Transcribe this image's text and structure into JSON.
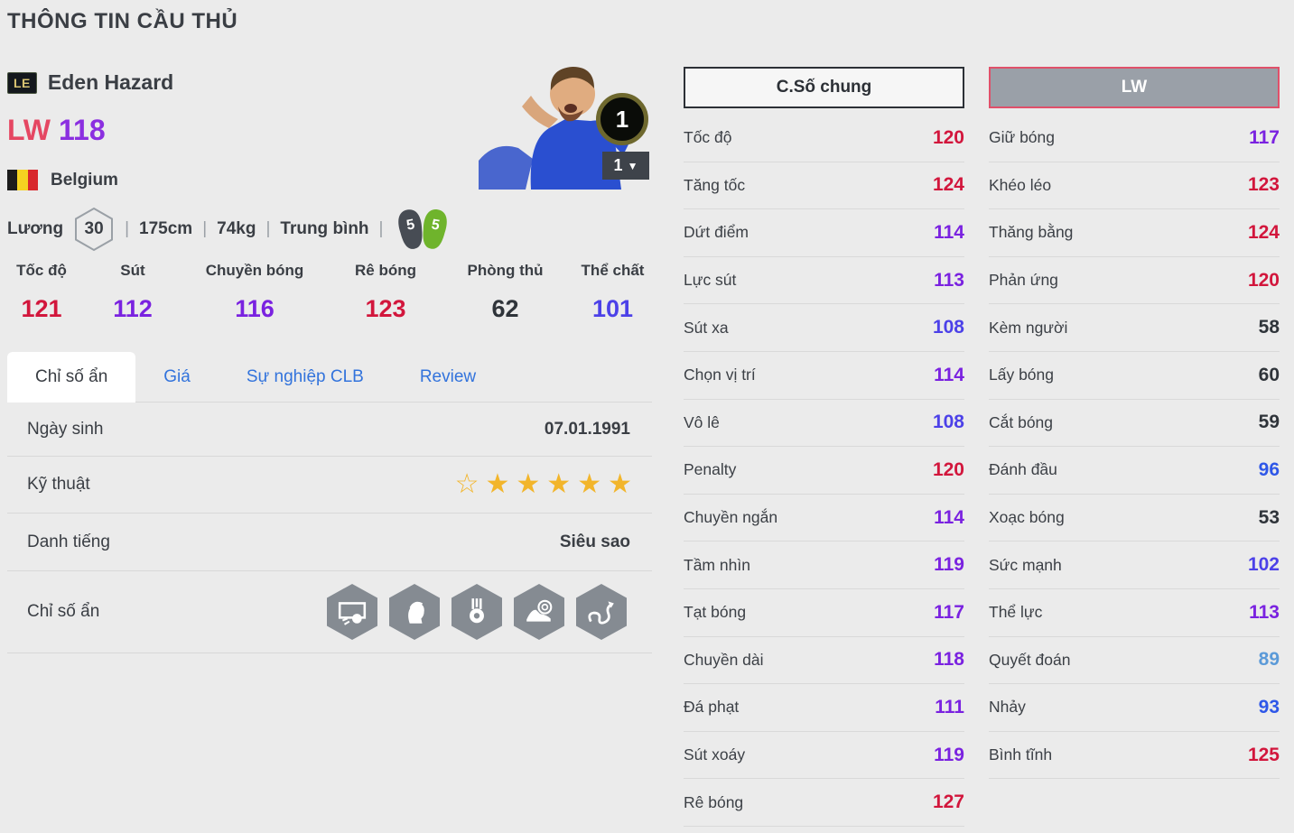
{
  "page": {
    "title": "THÔNG TIN CẦU THỦ"
  },
  "colors": {
    "red": "#d2163c",
    "purple": "#7a22e0",
    "indigo": "#4c41e8",
    "blue": "#2e57e8",
    "lightblue": "#5b9ad8",
    "dark": "#2f343a",
    "accent_pink": "#e54762",
    "accent_purple": "#8b2fe0",
    "tab_blue": "#3273dc",
    "star_gold": "#f2b52b"
  },
  "player": {
    "grade_badge": "LE",
    "name": "Eden Hazard",
    "position": "LW",
    "rating": "118",
    "nation": "Belgium",
    "salary_label": "Lương",
    "salary": "30",
    "height": "175cm",
    "weight": "74kg",
    "form": "Trung bình",
    "foot_left": "5",
    "foot_right": "5",
    "level_badge": "1",
    "level_selected": "1"
  },
  "summary_stats": [
    {
      "label": "Tốc độ",
      "value": "121",
      "tier": "red"
    },
    {
      "label": "Sút",
      "value": "112",
      "tier": "purple"
    },
    {
      "label": "Chuyền bóng",
      "value": "116",
      "tier": "purple"
    },
    {
      "label": "Rê bóng",
      "value": "123",
      "tier": "red"
    },
    {
      "label": "Phòng thủ",
      "value": "62",
      "tier": "dark"
    },
    {
      "label": "Thể chất",
      "value": "101",
      "tier": "indigo"
    }
  ],
  "tabs": [
    {
      "key": "hidden-stats",
      "label": "Chỉ số ẩn",
      "active": true
    },
    {
      "key": "price",
      "label": "Giá",
      "active": false
    },
    {
      "key": "club-career",
      "label": "Sự nghiệp CLB",
      "active": false
    },
    {
      "key": "review",
      "label": "Review",
      "active": false
    }
  ],
  "info_rows": {
    "birth_label": "Ngày sinh",
    "birth_value": "07.01.1991",
    "skill_label": "Kỹ thuật",
    "skill_stars_outline": 1,
    "skill_stars_filled": 5,
    "fame_label": "Danh tiếng",
    "fame_value": "Siêu sao",
    "hidden_label": "Chỉ số ẩn",
    "hidden_icons": [
      "goal-shot",
      "player-head",
      "medal",
      "boot-target",
      "dribble-path"
    ]
  },
  "stat_tabs": {
    "general": "C.Số chung",
    "position": "LW"
  },
  "stats_left": [
    {
      "label": "Tốc độ",
      "value": "120",
      "tier": "red"
    },
    {
      "label": "Tăng tốc",
      "value": "124",
      "tier": "red"
    },
    {
      "label": "Dứt điểm",
      "value": "114",
      "tier": "purple"
    },
    {
      "label": "Lực sút",
      "value": "113",
      "tier": "purple"
    },
    {
      "label": "Sút xa",
      "value": "108",
      "tier": "indigo"
    },
    {
      "label": "Chọn vị trí",
      "value": "114",
      "tier": "purple"
    },
    {
      "label": "Vô lê",
      "value": "108",
      "tier": "indigo"
    },
    {
      "label": "Penalty",
      "value": "120",
      "tier": "red"
    },
    {
      "label": "Chuyền ngắn",
      "value": "114",
      "tier": "purple"
    },
    {
      "label": "Tầm nhìn",
      "value": "119",
      "tier": "purple"
    },
    {
      "label": "Tạt bóng",
      "value": "117",
      "tier": "purple"
    },
    {
      "label": "Chuyền dài",
      "value": "118",
      "tier": "purple"
    },
    {
      "label": "Đá phạt",
      "value": "111",
      "tier": "purple"
    },
    {
      "label": "Sút xoáy",
      "value": "119",
      "tier": "purple"
    },
    {
      "label": "Rê bóng",
      "value": "127",
      "tier": "red"
    }
  ],
  "stats_right": [
    {
      "label": "Giữ bóng",
      "value": "117",
      "tier": "purple"
    },
    {
      "label": "Khéo léo",
      "value": "123",
      "tier": "red"
    },
    {
      "label": "Thăng bằng",
      "value": "124",
      "tier": "red"
    },
    {
      "label": "Phản ứng",
      "value": "120",
      "tier": "red"
    },
    {
      "label": "Kèm người",
      "value": "58",
      "tier": "dark"
    },
    {
      "label": "Lấy bóng",
      "value": "60",
      "tier": "dark"
    },
    {
      "label": "Cắt bóng",
      "value": "59",
      "tier": "dark"
    },
    {
      "label": "Đánh đầu",
      "value": "96",
      "tier": "blue"
    },
    {
      "label": "Xoạc bóng",
      "value": "53",
      "tier": "dark"
    },
    {
      "label": "Sức mạnh",
      "value": "102",
      "tier": "indigo"
    },
    {
      "label": "Thể lực",
      "value": "113",
      "tier": "purple"
    },
    {
      "label": "Quyết đoán",
      "value": "89",
      "tier": "lightblue"
    },
    {
      "label": "Nhảy",
      "value": "93",
      "tier": "blue"
    },
    {
      "label": "Bình tĩnh",
      "value": "125",
      "tier": "red"
    }
  ]
}
